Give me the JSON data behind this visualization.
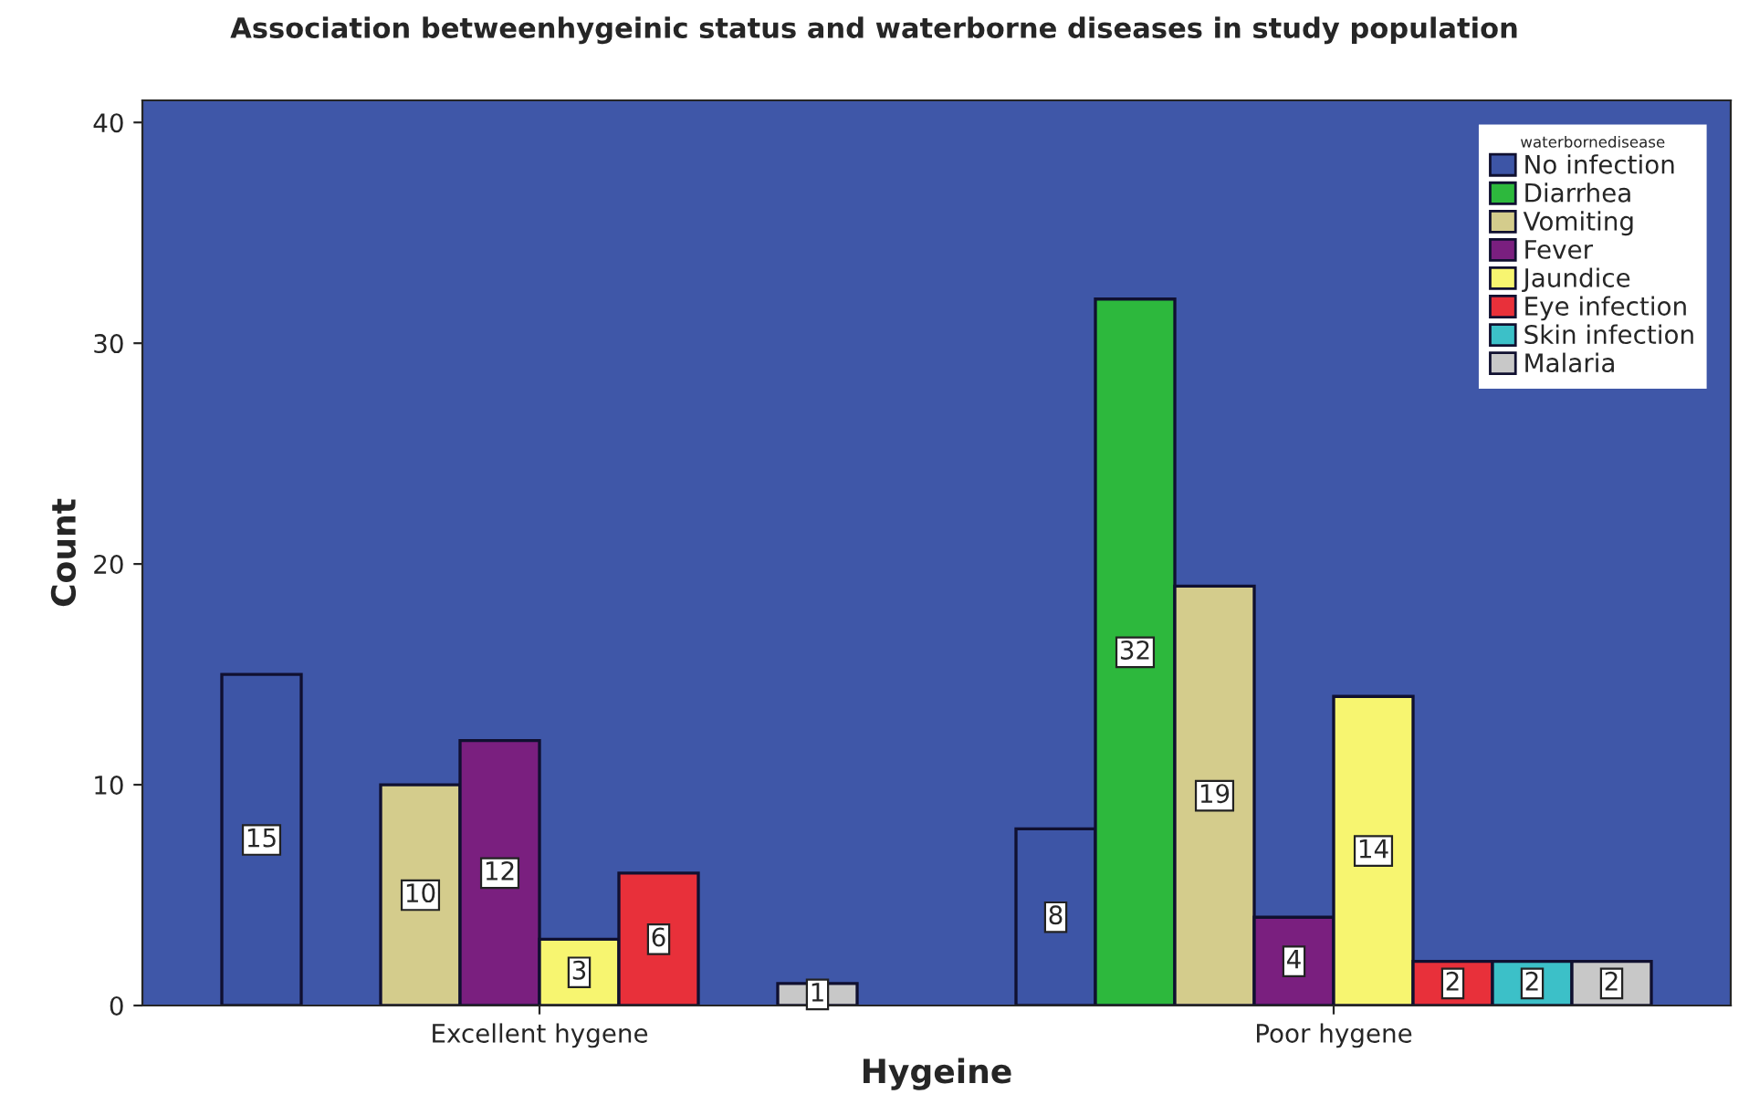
{
  "chart_data": {
    "type": "bar",
    "title": "Association betweenhygeinic status and waterborne diseases in study population",
    "xlabel": "Hygeine",
    "ylabel": "Count",
    "legend_title": "waterbornedisease",
    "categories": [
      "Excellent hygene",
      "Poor hygene"
    ],
    "series": [
      {
        "name": "No infection",
        "color": "#3d55a6",
        "values": [
          15,
          8
        ]
      },
      {
        "name": "Diarrhea",
        "color": "#2db83d",
        "values": [
          null,
          32
        ]
      },
      {
        "name": "Vomiting",
        "color": "#d4cc8c",
        "values": [
          10,
          19
        ]
      },
      {
        "name": "Fever",
        "color": "#7a1f7f",
        "values": [
          12,
          4
        ]
      },
      {
        "name": "Jaundice",
        "color": "#f7f570",
        "values": [
          3,
          14
        ]
      },
      {
        "name": "Eye infection",
        "color": "#e8303a",
        "values": [
          6,
          2
        ]
      },
      {
        "name": "Skin infection",
        "color": "#3cc0c8",
        "values": [
          null,
          2
        ]
      },
      {
        "name": "Malaria",
        "color": "#c8c8c8",
        "values": [
          1,
          2
        ]
      }
    ],
    "ylim": [
      0,
      41
    ],
    "yticks": [
      0,
      10,
      20,
      30,
      40
    ],
    "grid": false,
    "legend": "top right",
    "data_labels": true
  }
}
